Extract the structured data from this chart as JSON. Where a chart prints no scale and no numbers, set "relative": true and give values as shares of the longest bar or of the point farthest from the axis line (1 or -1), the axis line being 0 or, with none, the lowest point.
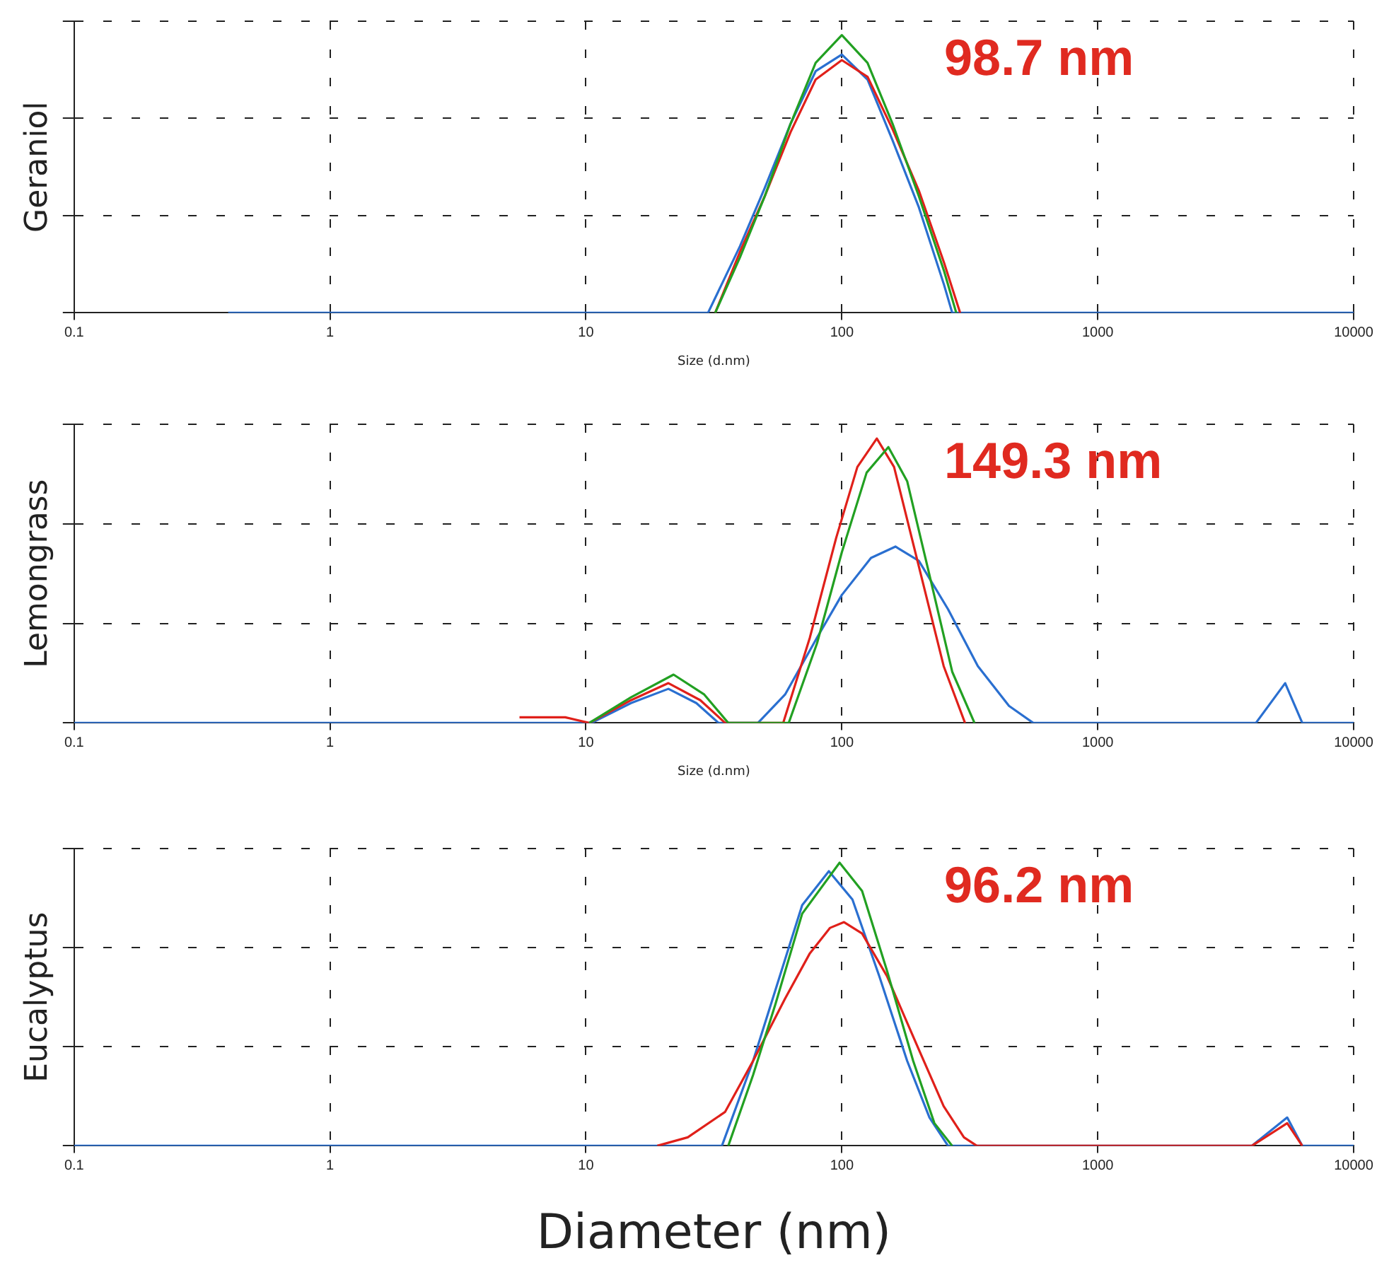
{
  "chart_data": [
    {
      "type": "line",
      "relative": true,
      "ylabel": "Geraniol",
      "xlabel": "Size (d.nm)",
      "annotations": [
        "98.7 nm"
      ],
      "log": "x",
      "xlim": [
        0.1,
        10000
      ],
      "xticks": [
        0.1,
        1,
        10,
        100,
        1000,
        10000
      ],
      "grid": true,
      "tick_labels": "x",
      "marker": "none",
      "line_style": "solid",
      "series": [
        {
          "color": "#22a022",
          "x": [
            32,
            40,
            50,
            63,
            79,
            100,
            126,
            158,
            200,
            251,
            280
          ],
          "values": [
            0,
            0.2,
            0.42,
            0.68,
            0.9,
            1,
            0.9,
            0.68,
            0.42,
            0.15,
            0
          ]
        },
        {
          "color": "#e0201a",
          "x": [
            32,
            40,
            50,
            63,
            79,
            100,
            126,
            158,
            200,
            251,
            290
          ],
          "values": [
            0,
            0.22,
            0.42,
            0.65,
            0.84,
            0.91,
            0.85,
            0.66,
            0.44,
            0.18,
            0
          ]
        },
        {
          "color": "#2a6fd0",
          "x": [
            0.4,
            30,
            40,
            50,
            63,
            79,
            100,
            126,
            158,
            200,
            251,
            270,
            10000
          ],
          "values": [
            0,
            0,
            0.24,
            0.45,
            0.68,
            0.87,
            0.93,
            0.84,
            0.62,
            0.38,
            0.1,
            0,
            0
          ]
        }
      ]
    },
    {
      "type": "line",
      "relative": true,
      "ylabel": "Lemongrass",
      "xlabel": "Size (d.nm)",
      "annotations": [
        "149.3 nm"
      ],
      "log": "x",
      "xlim": [
        0.1,
        10000
      ],
      "xticks": [
        0.1,
        1,
        10,
        100,
        1000,
        10000
      ],
      "grid": true,
      "tick_labels": "x",
      "marker": "none",
      "line_style": "solid",
      "series": [
        {
          "color": "#22a022",
          "x": [
            10.3,
            15,
            22,
            29,
            36,
            62,
            80,
            100,
            125,
            152,
            180,
            220,
            270,
            330
          ],
          "values": [
            0,
            0.09,
            0.17,
            0.1,
            0,
            0,
            0.28,
            0.6,
            0.88,
            0.97,
            0.85,
            0.52,
            0.18,
            0
          ]
        },
        {
          "color": "#e0201a",
          "x": [
            5.5,
            8.3,
            10.3,
            15,
            21,
            28,
            35,
            59,
            75,
            95,
            115,
            137,
            160,
            200,
            250,
            303
          ],
          "values": [
            0.02,
            0.02,
            0,
            0.08,
            0.14,
            0.08,
            0,
            0,
            0.3,
            0.65,
            0.9,
            1,
            0.9,
            0.55,
            0.2,
            0
          ]
        },
        {
          "color": "#2a6fd0",
          "x": [
            0.1,
            10.5,
            15,
            21,
            27,
            33,
            47,
            60,
            80,
            100,
            130,
            162,
            200,
            260,
            340,
            450,
            560,
            4150,
            5400,
            6300,
            10000
          ],
          "values": [
            0,
            0,
            0.07,
            0.12,
            0.07,
            0,
            0,
            0.1,
            0.3,
            0.45,
            0.58,
            0.62,
            0.57,
            0.4,
            0.2,
            0.06,
            0,
            0,
            0.14,
            0,
            0
          ]
        }
      ]
    },
    {
      "type": "line",
      "relative": true,
      "ylabel": "Eucalyptus",
      "xlabel": "Diameter (nm)",
      "annotations": [
        "96.2 nm"
      ],
      "log": "x",
      "xlim": [
        0.1,
        10000
      ],
      "xticks": [
        0.1,
        1,
        10,
        100,
        1000,
        10000
      ],
      "grid": true,
      "tick_labels": "x",
      "marker": "none",
      "line_style": "solid",
      "series": [
        {
          "color": "#22a022",
          "x": [
            36,
            45,
            55,
            70,
            98,
            120,
            150,
            190,
            230,
            270
          ],
          "values": [
            0,
            0.25,
            0.5,
            0.82,
            1,
            0.9,
            0.62,
            0.3,
            0.08,
            0
          ]
        },
        {
          "color": "#e0201a",
          "x": [
            19,
            25,
            35,
            45,
            60,
            75,
            90,
            102,
            120,
            150,
            200,
            250,
            300,
            337,
            4000,
            5500,
            6300
          ],
          "values": [
            0,
            0.03,
            0.12,
            0.3,
            0.52,
            0.68,
            0.77,
            0.79,
            0.75,
            0.6,
            0.34,
            0.14,
            0.03,
            0,
            0,
            0.08,
            0
          ]
        },
        {
          "color": "#2a6fd0",
          "x": [
            0.1,
            34,
            45,
            55,
            70,
            89,
            110,
            140,
            180,
            220,
            260,
            4000,
            5500,
            6300,
            10000
          ],
          "values": [
            0,
            0,
            0.3,
            0.55,
            0.85,
            0.97,
            0.87,
            0.6,
            0.3,
            0.1,
            0,
            0,
            0.1,
            0,
            0
          ]
        }
      ]
    }
  ]
}
